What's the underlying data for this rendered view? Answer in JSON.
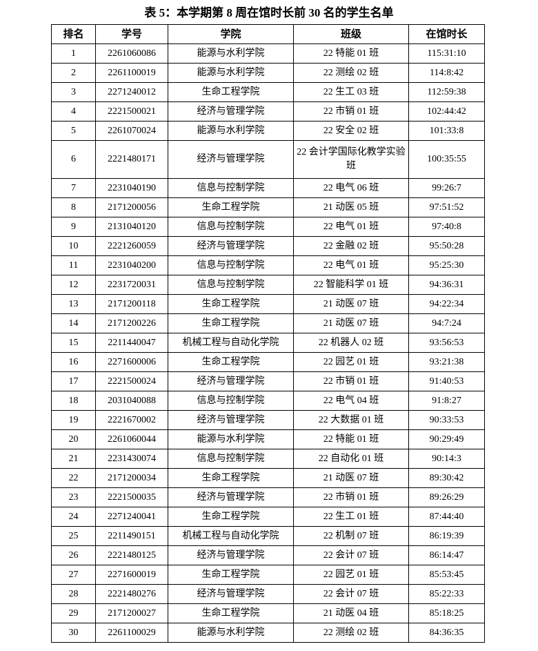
{
  "title": "表 5：本学期第 8 周在馆时长前 30 名的学生名单",
  "headers": [
    "排名",
    "学号",
    "学院",
    "班级",
    "在馆时长"
  ],
  "rows": [
    [
      "1",
      "2261060086",
      "能源与水利学院",
      "22 特能 01 班",
      "115:31:10"
    ],
    [
      "2",
      "2261100019",
      "能源与水利学院",
      "22 测绘 02 班",
      "114:8:42"
    ],
    [
      "3",
      "2271240012",
      "生命工程学院",
      "22 生工 03 班",
      "112:59:38"
    ],
    [
      "4",
      "2221500021",
      "经济与管理学院",
      "22 市销 01 班",
      "102:44:42"
    ],
    [
      "5",
      "2261070024",
      "能源与水利学院",
      "22 安全 02 班",
      "101:33:8"
    ],
    [
      "6",
      "2221480171",
      "经济与管理学院",
      "22 会计学国际化教学实验班",
      "100:35:55"
    ],
    [
      "7",
      "2231040190",
      "信息与控制学院",
      "22 电气 06 班",
      "99:26:7"
    ],
    [
      "8",
      "2171200056",
      "生命工程学院",
      "21 动医 05 班",
      "97:51:52"
    ],
    [
      "9",
      "2131040120",
      "信息与控制学院",
      "22 电气 01 班",
      "97:40:8"
    ],
    [
      "10",
      "2221260059",
      "经济与管理学院",
      "22 金融 02 班",
      "95:50:28"
    ],
    [
      "11",
      "2231040200",
      "信息与控制学院",
      "22 电气 01 班",
      "95:25:30"
    ],
    [
      "12",
      "2231720031",
      "信息与控制学院",
      "22 智能科学 01 班",
      "94:36:31"
    ],
    [
      "13",
      "2171200118",
      "生命工程学院",
      "21 动医 07 班",
      "94:22:34"
    ],
    [
      "14",
      "2171200226",
      "生命工程学院",
      "21 动医 07 班",
      "94:7:24"
    ],
    [
      "15",
      "2211440047",
      "机械工程与自动化学院",
      "22 机器人 02 班",
      "93:56:53"
    ],
    [
      "16",
      "2271600006",
      "生命工程学院",
      "22 园艺 01 班",
      "93:21:38"
    ],
    [
      "17",
      "2221500024",
      "经济与管理学院",
      "22 市销 01 班",
      "91:40:53"
    ],
    [
      "18",
      "2031040088",
      "信息与控制学院",
      "22 电气 04 班",
      "91:8:27"
    ],
    [
      "19",
      "2221670002",
      "经济与管理学院",
      "22 大数据 01 班",
      "90:33:53"
    ],
    [
      "20",
      "2261060044",
      "能源与水利学院",
      "22 特能 01 班",
      "90:29:49"
    ],
    [
      "21",
      "2231430074",
      "信息与控制学院",
      "22 自动化 01 班",
      "90:14:3"
    ],
    [
      "22",
      "2171200034",
      "生命工程学院",
      "21 动医 07 班",
      "89:30:42"
    ],
    [
      "23",
      "2221500035",
      "经济与管理学院",
      "22 市销 01 班",
      "89:26:29"
    ],
    [
      "24",
      "2271240041",
      "生命工程学院",
      "22 生工 01 班",
      "87:44:40"
    ],
    [
      "25",
      "2211490151",
      "机械工程与自动化学院",
      "22 机制 07 班",
      "86:19:39"
    ],
    [
      "26",
      "2221480125",
      "经济与管理学院",
      "22 会计 07 班",
      "86:14:47"
    ],
    [
      "27",
      "2271600019",
      "生命工程学院",
      "22 园艺 01 班",
      "85:53:45"
    ],
    [
      "28",
      "2221480276",
      "经济与管理学院",
      "22 会计 07 班",
      "85:22:33"
    ],
    [
      "29",
      "2171200027",
      "生命工程学院",
      "21 动医 04 班",
      "85:18:25"
    ],
    [
      "30",
      "2261100029",
      "能源与水利学院",
      "22 测绘 02 班",
      "84:36:35"
    ]
  ]
}
